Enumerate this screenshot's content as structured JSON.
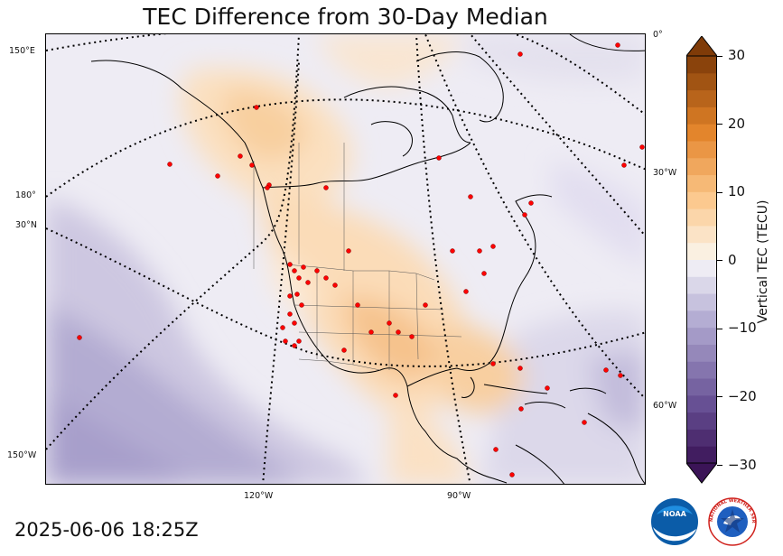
{
  "title": "TEC Difference from 30-Day Median",
  "timestamp": "2025-06-06 18:25Z",
  "colorbar": {
    "label": "Vertical TEC (TECU)",
    "ticks": [
      "30",
      "20",
      "10",
      "0",
      "−10",
      "−20",
      "−30"
    ],
    "min": -30,
    "max": 30,
    "low_color": "#3b1457",
    "high_color": "#7f3b08"
  },
  "grid_labels": {
    "left": [
      "150°E",
      "180°",
      "30°N",
      "150°W"
    ],
    "right": [
      "0°",
      "30°W",
      "60°W"
    ],
    "bottom": [
      "120°W",
      "90°W"
    ]
  },
  "logos": {
    "noaa": "NOAA",
    "nws": "NATIONAL WEATHER SERVICE"
  }
}
